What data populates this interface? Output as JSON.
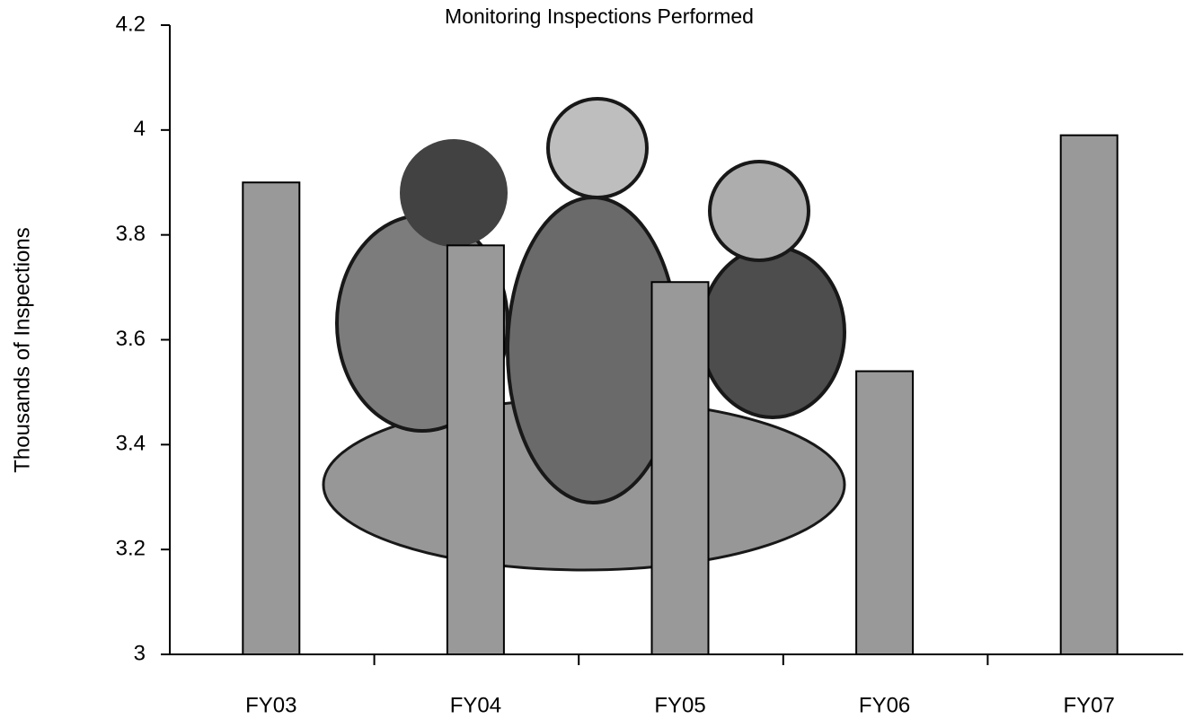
{
  "chart_data": {
    "type": "bar",
    "title": "Monitoring Inspections Performed",
    "y_label": "Thousands of Inspections",
    "categories": [
      "FY03",
      "FY04",
      "FY05",
      "FY06",
      "FY07"
    ],
    "values": [
      3.9,
      3.78,
      3.71,
      3.54,
      3.99
    ],
    "color": "#999999",
    "ylim": [
      3,
      4.2
    ],
    "yticks": [
      3,
      3.2,
      3.4,
      3.6,
      3.8,
      4,
      4.2
    ],
    "grid": false
  }
}
